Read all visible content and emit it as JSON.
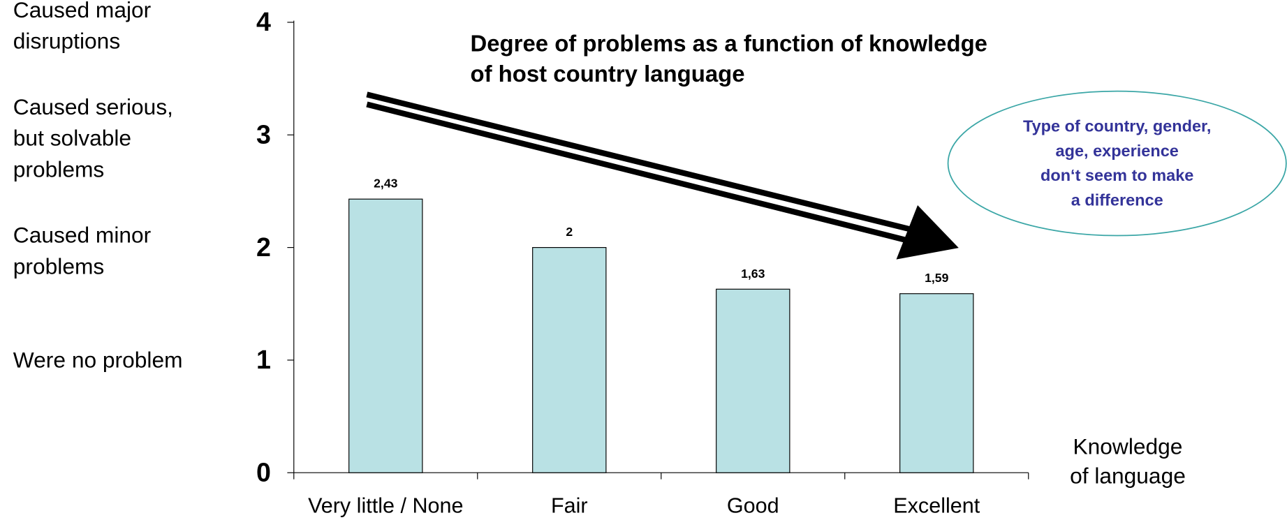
{
  "chart_data": {
    "type": "bar",
    "title": [
      "Degree of problems as a function of knowledge",
      "of host country language"
    ],
    "x_label": [
      "Knowledge",
      "of language"
    ],
    "categories": [
      "Very little / None",
      "Fair",
      "Good",
      "Excellent"
    ],
    "values": [
      2.43,
      2,
      1.63,
      1.59
    ],
    "value_labels": [
      "2,43",
      "2",
      "1,63",
      "1,59"
    ],
    "color": "#b9e1e4",
    "ylim": [
      0,
      4
    ],
    "yticks": [
      0,
      1,
      2,
      3,
      4
    ],
    "y_level_labels": [
      {
        "value": 1,
        "lines": [
          "Were no problem"
        ]
      },
      {
        "value": 2,
        "lines": [
          "Caused minor",
          "problems"
        ]
      },
      {
        "value": 3,
        "lines": [
          "Caused serious,",
          "but solvable",
          "problems"
        ]
      },
      {
        "value": 4,
        "lines": [
          "Caused major",
          "disruptions"
        ]
      }
    ],
    "note": [
      "Type of country, gender,",
      "age, experience",
      "don‘t seem to make",
      "a difference"
    ]
  }
}
